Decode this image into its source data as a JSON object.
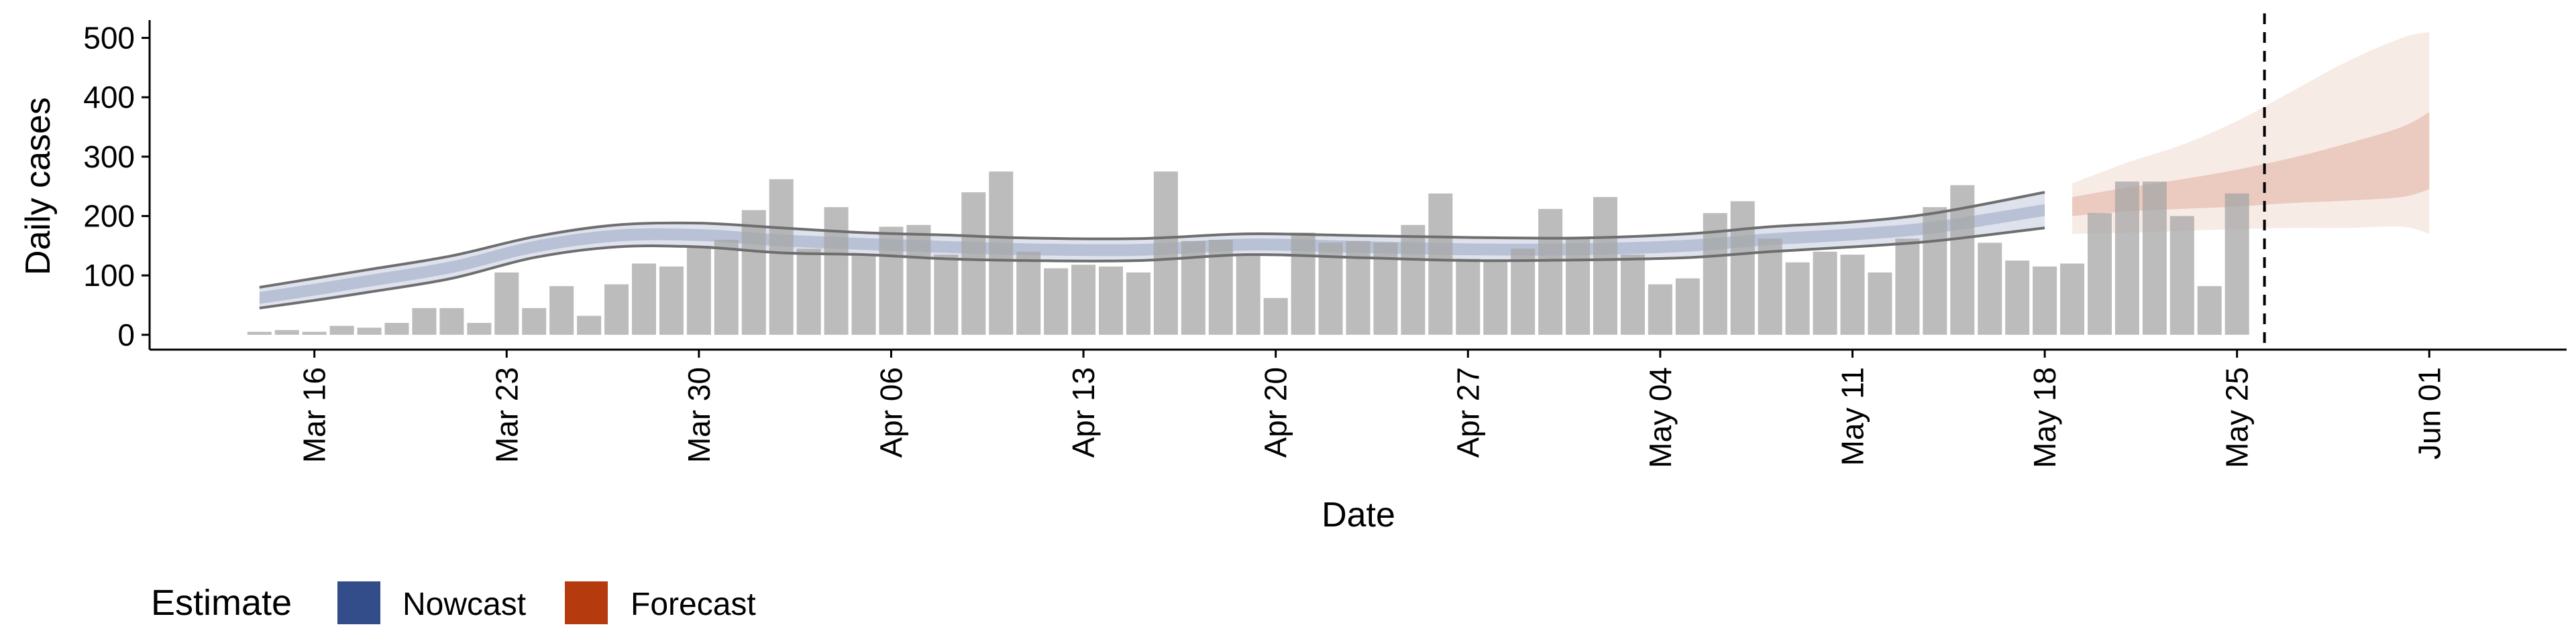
{
  "chart_data": {
    "type": "bar",
    "title": "",
    "xlabel": "Date",
    "ylabel": "Daily cases",
    "x_axis_type": "date",
    "ylim": [
      -25,
      530
    ],
    "yticks": [
      0,
      100,
      200,
      300,
      400,
      500
    ],
    "xticks": [
      "2020-03-16",
      "2020-03-23",
      "2020-03-30",
      "2020-04-06",
      "2020-04-13",
      "2020-04-20",
      "2020-04-27",
      "2020-05-04",
      "2020-05-11",
      "2020-05-18",
      "2020-05-25",
      "2020-06-01"
    ],
    "xtick_labels": [
      "Mar 16",
      "Mar 23",
      "Mar 30",
      "Apr 06",
      "Apr 13",
      "Apr 20",
      "Apr 27",
      "May 04",
      "May 11",
      "May 18",
      "May 25",
      "Jun 01"
    ],
    "bars": {
      "start_date": "2020-03-14",
      "values": [
        5,
        8,
        5,
        15,
        12,
        20,
        45,
        45,
        20,
        105,
        45,
        82,
        32,
        85,
        120,
        115,
        150,
        160,
        210,
        262,
        145,
        215,
        135,
        182,
        185,
        135,
        240,
        275,
        140,
        112,
        118,
        115,
        105,
        275,
        158,
        160,
        135,
        62,
        172,
        155,
        158,
        155,
        185,
        238,
        128,
        125,
        145,
        212,
        165,
        232,
        135,
        85,
        95,
        205,
        225,
        162,
        122,
        140,
        135,
        105,
        162,
        215,
        252,
        155,
        125,
        115,
        120,
        205,
        258,
        258,
        200,
        82,
        238
      ]
    },
    "series": [
      {
        "name": "Nowcast",
        "type": "ribbon",
        "color": "#334c8a",
        "x": [
          "2020-03-14",
          "2020-03-16",
          "2020-03-18",
          "2020-03-21",
          "2020-03-24",
          "2020-03-27",
          "2020-03-30",
          "2020-04-02",
          "2020-04-05",
          "2020-04-08",
          "2020-04-11",
          "2020-04-15",
          "2020-04-19",
          "2020-04-23",
          "2020-04-27",
          "2020-05-01",
          "2020-05-05",
          "2020-05-08",
          "2020-05-11",
          "2020-05-14",
          "2020-05-18"
        ],
        "upper": [
          80,
          95,
          110,
          133,
          165,
          185,
          188,
          180,
          172,
          168,
          163,
          162,
          170,
          167,
          164,
          163,
          170,
          182,
          190,
          205,
          240
        ],
        "lower": [
          45,
          58,
          72,
          95,
          130,
          148,
          148,
          138,
          135,
          128,
          125,
          125,
          135,
          130,
          125,
          126,
          130,
          140,
          148,
          158,
          180
        ],
        "mid": [
          62,
          76,
          91,
          114,
          148,
          167,
          168,
          159,
          153,
          148,
          144,
          143,
          152,
          148,
          144,
          144,
          150,
          161,
          169,
          181,
          210
        ]
      },
      {
        "name": "Forecast",
        "type": "ribbon",
        "color": "#b53a0e",
        "x": [
          "2020-05-19",
          "2020-05-21",
          "2020-05-23",
          "2020-05-25",
          "2020-05-27",
          "2020-05-29",
          "2020-05-31",
          "2020-06-01"
        ],
        "outer_upper": [
          255,
          290,
          320,
          360,
          410,
          460,
          500,
          510
        ],
        "outer_lower": [
          170,
          172,
          175,
          178,
          180,
          180,
          182,
          170
        ],
        "inner_upper": [
          232,
          248,
          262,
          278,
          298,
          322,
          350,
          375
        ],
        "inner_lower": [
          200,
          208,
          212,
          216,
          222,
          226,
          232,
          245
        ]
      }
    ],
    "annotations": [
      {
        "type": "vline",
        "x": "2020-05-26",
        "style": "dashed"
      }
    ],
    "grid": false,
    "legend": {
      "position": "bottom-left",
      "title": "Estimate",
      "entries": [
        {
          "label": "Nowcast",
          "color": "#334c8a"
        },
        {
          "label": "Forecast",
          "color": "#b53a0e"
        }
      ]
    }
  }
}
